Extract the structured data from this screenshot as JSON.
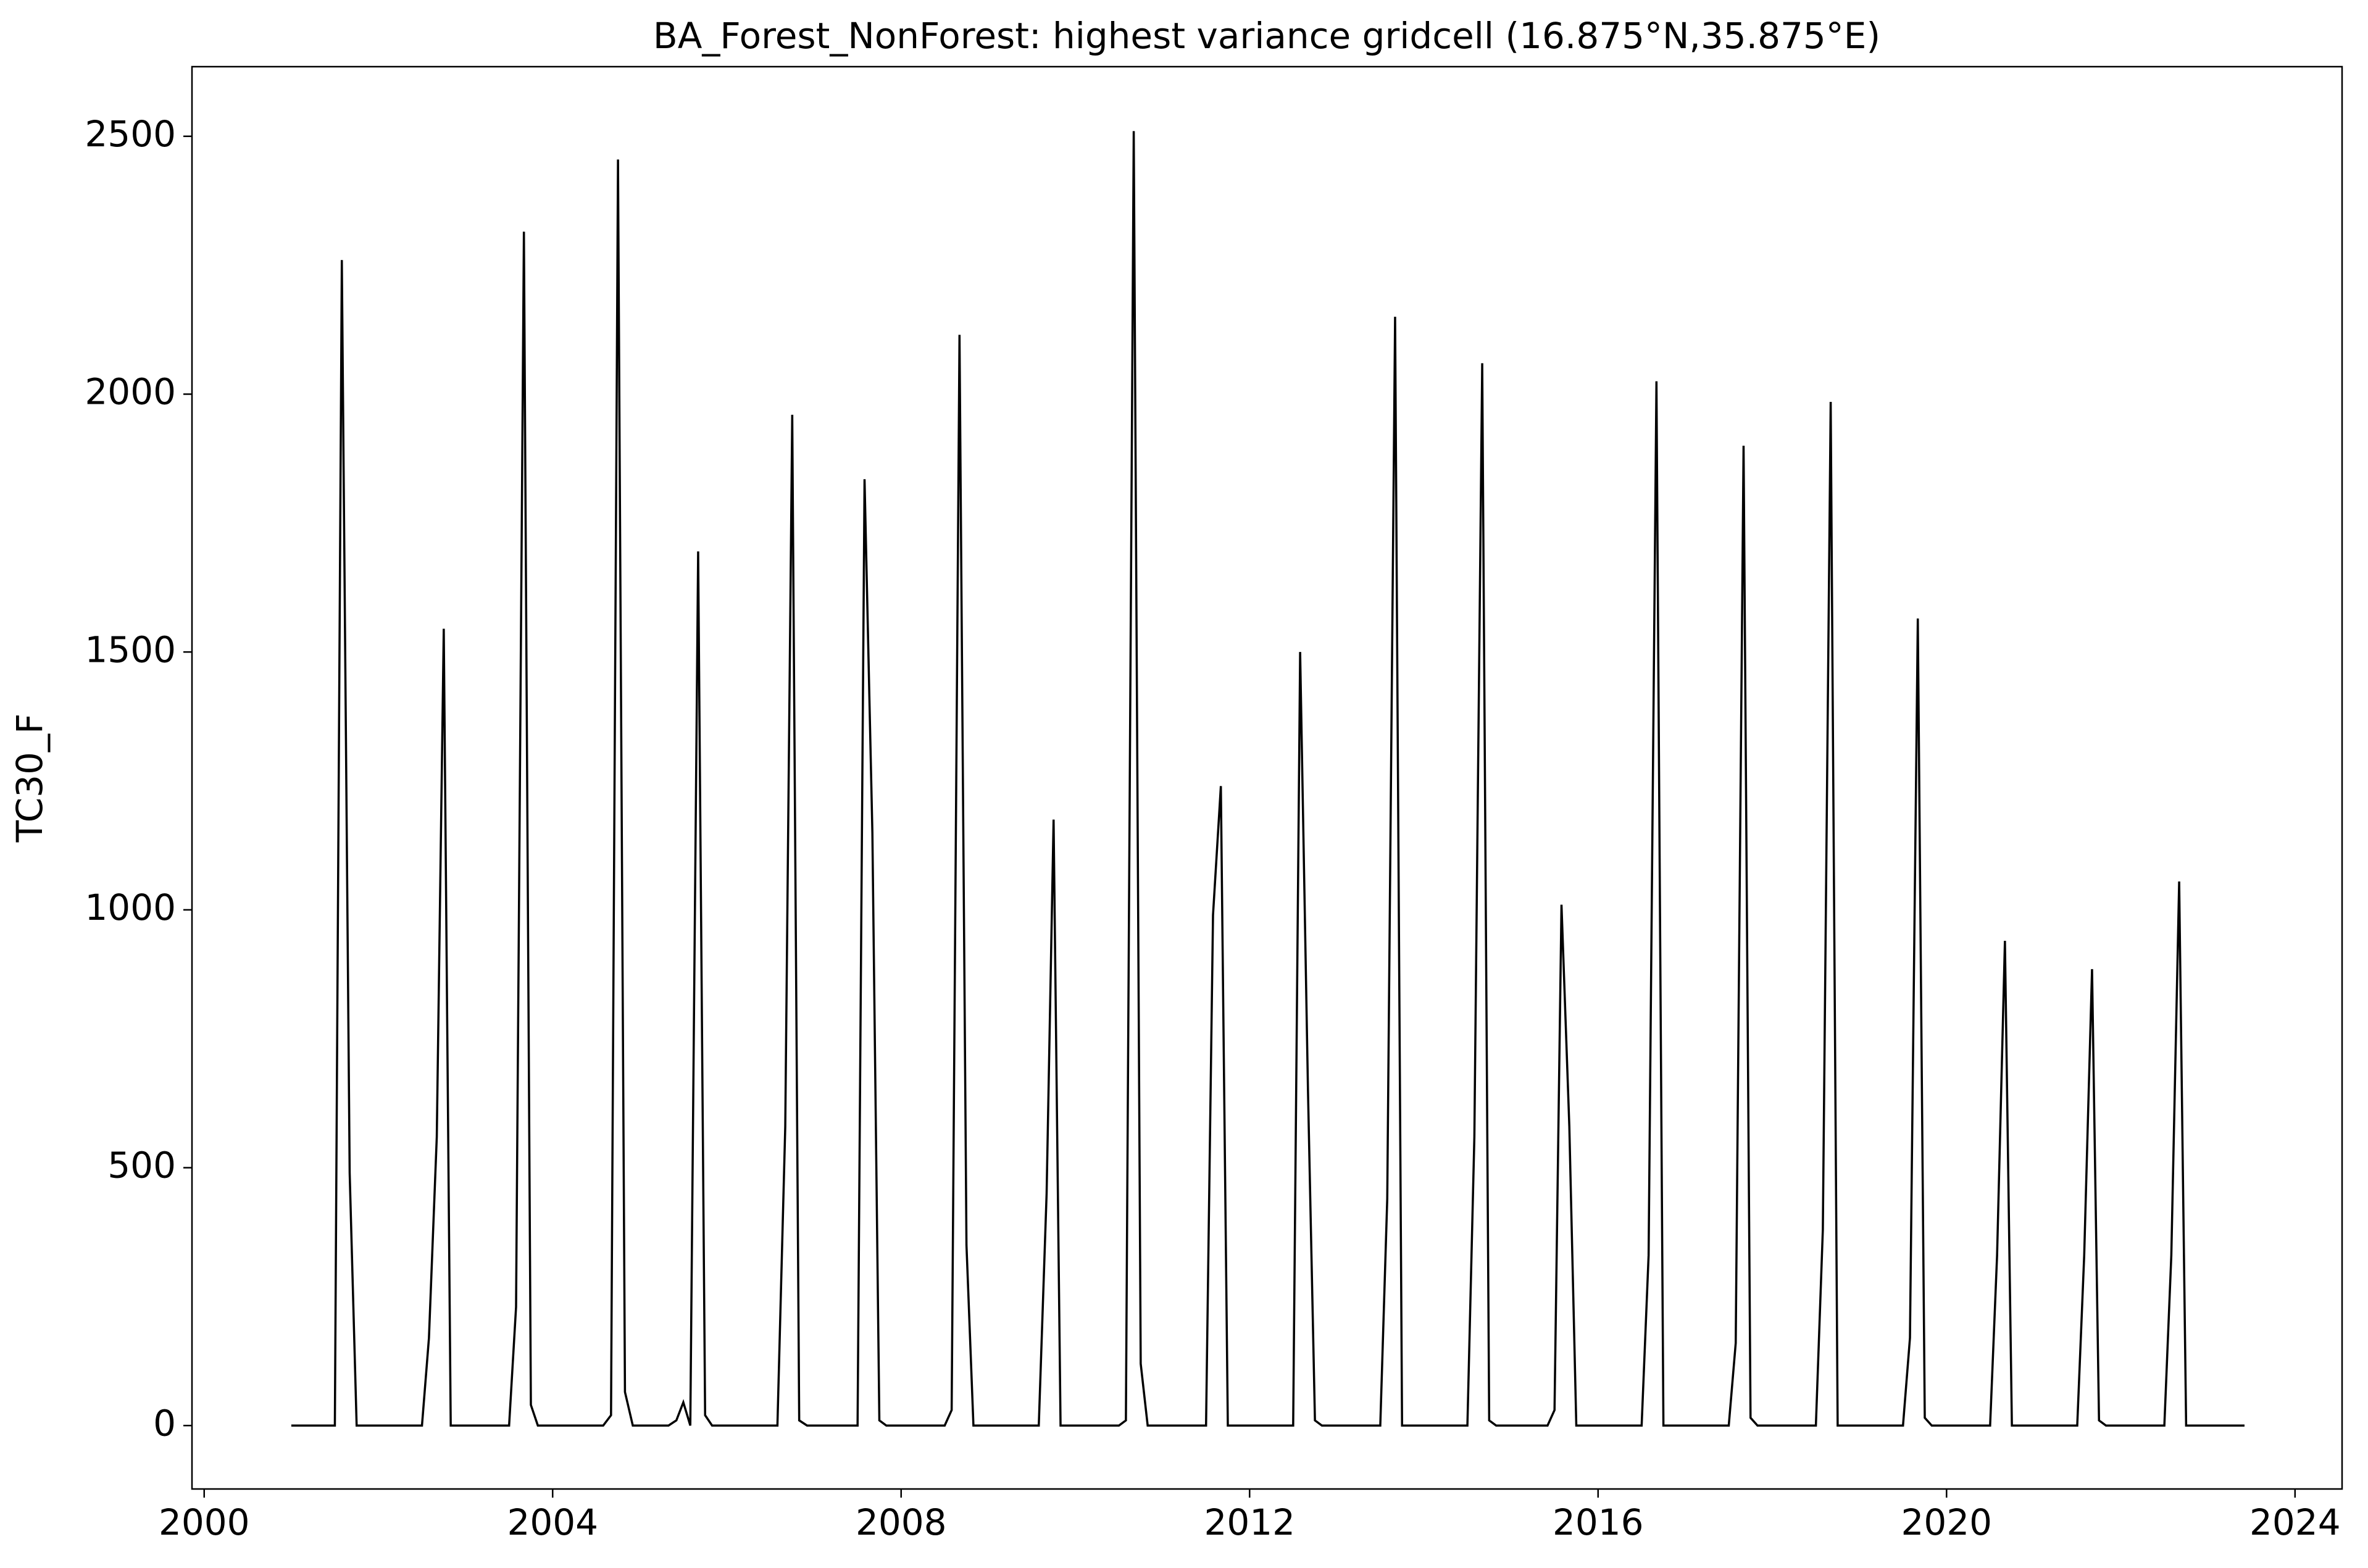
{
  "chart_data": {
    "type": "line",
    "title": "BA_Forest_NonForest: highest variance gridcell (16.875°N,35.875°E)",
    "y_label": "TC30_F",
    "x": [
      2001.0,
      2001.5,
      2001.58,
      2001.67,
      2001.75,
      2002.5,
      2002.58,
      2002.67,
      2002.75,
      2002.83,
      2003.5,
      2003.58,
      2003.67,
      2003.75,
      2003.83,
      2004.58,
      2004.67,
      2004.75,
      2004.83,
      2004.92,
      2005.33,
      2005.42,
      2005.5,
      2005.58,
      2005.67,
      2005.75,
      2005.83,
      2006.58,
      2006.67,
      2006.75,
      2006.83,
      2006.92,
      2007.5,
      2007.58,
      2007.67,
      2007.75,
      2007.83,
      2008.5,
      2008.58,
      2008.67,
      2008.75,
      2008.83,
      2009.58,
      2009.67,
      2009.75,
      2009.83,
      2010.5,
      2010.58,
      2010.67,
      2010.75,
      2010.83,
      2011.5,
      2011.58,
      2011.67,
      2011.75,
      2012.5,
      2012.58,
      2012.67,
      2012.75,
      2012.83,
      2013.5,
      2013.58,
      2013.67,
      2013.75,
      2014.5,
      2014.58,
      2014.67,
      2014.75,
      2014.83,
      2015.42,
      2015.5,
      2015.58,
      2015.67,
      2015.75,
      2016.5,
      2016.58,
      2016.67,
      2016.75,
      2017.5,
      2017.58,
      2017.67,
      2017.75,
      2017.83,
      2018.5,
      2018.58,
      2018.67,
      2018.75,
      2019.5,
      2019.58,
      2019.67,
      2019.75,
      2019.83,
      2020.5,
      2020.58,
      2020.67,
      2020.75,
      2021.5,
      2021.58,
      2021.67,
      2021.75,
      2021.83,
      2022.5,
      2022.58,
      2022.67,
      2022.75,
      2023.42
    ],
    "series": [
      {
        "color": "#000000",
        "values": [
          0,
          0,
          2260,
          490,
          0,
          0,
          170,
          560,
          1545,
          0,
          0,
          230,
          2315,
          40,
          0,
          0,
          20,
          2455,
          65,
          0,
          0,
          10,
          45,
          0,
          1695,
          20,
          0,
          0,
          580,
          1960,
          10,
          0,
          0,
          1835,
          1150,
          10,
          0,
          0,
          30,
          2115,
          350,
          0,
          0,
          450,
          1175,
          0,
          0,
          10,
          2510,
          120,
          0,
          0,
          990,
          1240,
          0,
          0,
          1500,
          650,
          10,
          0,
          0,
          440,
          2150,
          0,
          0,
          560,
          2060,
          10,
          0,
          0,
          30,
          1010,
          580,
          0,
          0,
          330,
          2025,
          0,
          0,
          160,
          1900,
          15,
          0,
          0,
          380,
          1985,
          0,
          0,
          170,
          1565,
          15,
          0,
          0,
          330,
          940,
          0,
          0,
          330,
          885,
          10,
          0,
          0,
          330,
          1055,
          0,
          0
        ]
      }
    ],
    "xlim": [
      1999.86,
      2024.54
    ],
    "ylim": [
      -123,
      2635
    ],
    "xticks": [
      2000,
      2004,
      2008,
      2012,
      2016,
      2020,
      2024
    ],
    "yticks": [
      0,
      500,
      1000,
      1500,
      2000,
      2500
    ]
  }
}
